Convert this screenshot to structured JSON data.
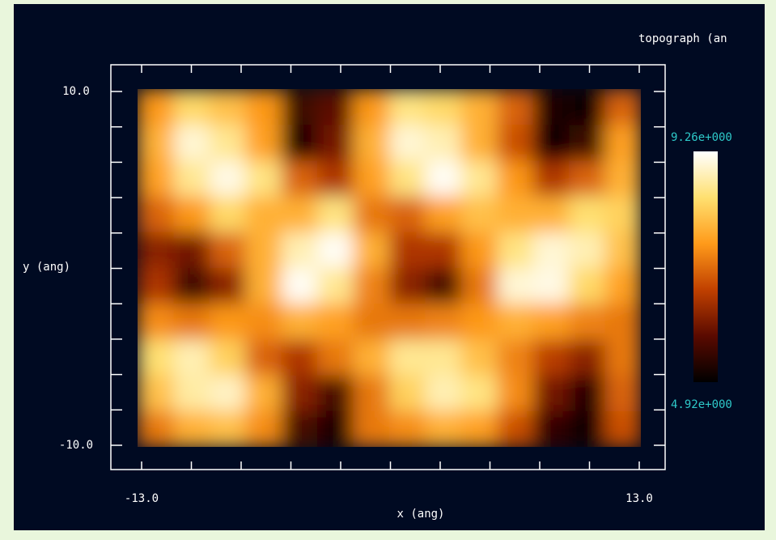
{
  "chart_data": {
    "type": "heatmap",
    "title": "topograph (an",
    "xlabel": "x (ang)",
    "ylabel": "y (ang)",
    "xlim": [
      -13,
      13
    ],
    "ylim": [
      -10,
      10
    ],
    "xticks": [
      {
        "value": -13,
        "label": "-13.0"
      },
      -10.4,
      -7.8,
      -5.2,
      -2.6,
      0,
      2.6,
      5.2,
      7.8,
      10.4,
      {
        "value": 13,
        "label": "13.0"
      }
    ],
    "yticks": [
      {
        "value": -10,
        "label": "-10.0"
      },
      -8,
      -6,
      -4,
      -2,
      0,
      2,
      4,
      6,
      8,
      {
        "value": 10,
        "label": "10.0"
      }
    ],
    "colorbar": {
      "min": {
        "value": 4.92,
        "label": "4.92e+000"
      },
      "max": {
        "value": 9.26,
        "label": "9.26e+000"
      }
    },
    "colormap": [
      "#000000",
      "#5a0a00",
      "#c04000",
      "#ff9a1a",
      "#ffe070",
      "#ffffff"
    ],
    "z": [
      [
        7.5,
        8.3,
        8.0,
        7.5,
        5.5,
        5.8,
        7.5,
        8.5,
        8.3,
        7.8,
        7.0,
        5.2,
        5.0,
        7.0
      ],
      [
        7.8,
        9.0,
        8.6,
        7.6,
        5.2,
        6.0,
        7.8,
        9.0,
        8.8,
        7.8,
        6.8,
        5.0,
        5.5,
        7.6
      ],
      [
        7.6,
        8.6,
        9.1,
        8.5,
        7.0,
        6.5,
        7.6,
        8.5,
        9.2,
        8.6,
        7.5,
        6.5,
        7.0,
        7.8
      ],
      [
        7.0,
        7.5,
        8.3,
        7.8,
        7.8,
        8.5,
        7.2,
        7.0,
        7.6,
        8.0,
        7.8,
        7.8,
        8.4,
        8.2
      ],
      [
        6.2,
        6.0,
        7.0,
        7.8,
        8.8,
        9.2,
        7.8,
        6.5,
        6.5,
        7.5,
        8.5,
        9.0,
        8.8,
        8.0
      ],
      [
        6.5,
        5.5,
        6.2,
        7.8,
        9.2,
        8.6,
        7.3,
        6.2,
        5.6,
        7.2,
        9.0,
        9.1,
        8.3,
        7.6
      ],
      [
        7.4,
        7.2,
        7.5,
        7.4,
        7.8,
        7.6,
        7.2,
        7.2,
        7.3,
        7.5,
        7.8,
        7.6,
        7.3,
        7.2
      ],
      [
        8.4,
        8.8,
        8.2,
        7.0,
        6.5,
        7.2,
        7.8,
        8.6,
        8.6,
        8.0,
        7.3,
        6.6,
        6.2,
        7.2
      ],
      [
        8.0,
        8.7,
        8.9,
        7.8,
        6.2,
        5.6,
        7.2,
        8.2,
        8.8,
        8.5,
        7.4,
        6.0,
        5.3,
        7.0
      ],
      [
        7.2,
        7.8,
        8.0,
        7.4,
        5.6,
        5.2,
        7.2,
        7.4,
        7.8,
        7.6,
        6.8,
        5.4,
        5.0,
        6.8
      ]
    ]
  }
}
